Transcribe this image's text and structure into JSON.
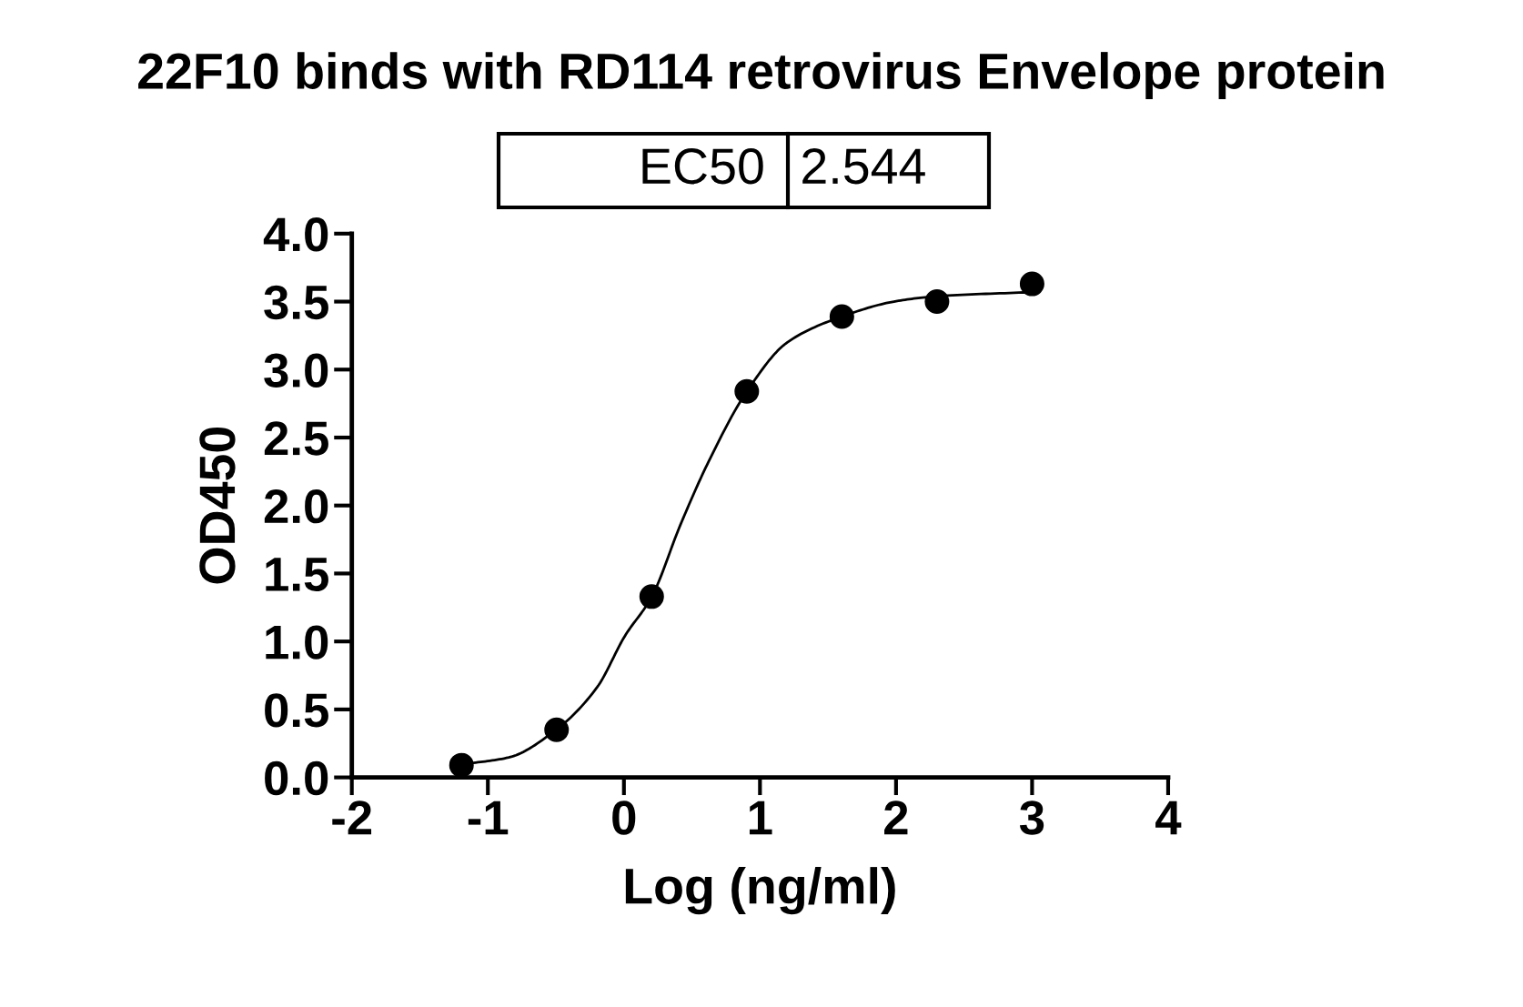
{
  "chart_data": {
    "type": "scatter",
    "title": "22F10 binds with RD114 retrovirus Envelope protein",
    "xlabel": "Log (ng/ml)",
    "ylabel": "OD450",
    "annotations": [
      "EC50",
      "2.544"
    ],
    "xlim": [
      -2,
      4
    ],
    "xticks": [
      -2,
      -1,
      0,
      1,
      2,
      3,
      4
    ],
    "ylim": [
      0,
      4
    ],
    "yticks": [
      {
        "value": 0,
        "label": "0.0"
      },
      {
        "value": 0.5,
        "label": "0.5"
      },
      {
        "value": 1,
        "label": "1.0"
      },
      {
        "value": 1.5,
        "label": "1.5"
      },
      {
        "value": 2,
        "label": "2.0"
      },
      {
        "value": 2.5,
        "label": "2.5"
      },
      {
        "value": 3,
        "label": "3.0"
      },
      {
        "value": 3.5,
        "label": "3.5"
      },
      {
        "value": 4,
        "label": "4.0"
      }
    ],
    "grid": false,
    "legend": false,
    "marker": "circle",
    "series": [
      {
        "color": "#000000",
        "x": [
          -1.194,
          -0.495,
          0.204,
          0.903,
          1.602,
          2.301,
          3.0
        ],
        "values": [
          0.09,
          0.35,
          1.33,
          2.84,
          3.39,
          3.5,
          3.63
        ]
      },
      {
        "type": "line",
        "color": "#000000",
        "line_style": "solid",
        "marker": "none",
        "x": [
          -1.194,
          -0.846,
          -0.495,
          -0.198,
          0.007,
          0.205,
          0.416,
          0.621,
          0.904,
          1.201,
          1.603,
          1.985,
          2.31,
          3.008
        ],
        "values": [
          0.096,
          0.147,
          0.353,
          0.662,
          1.04,
          1.33,
          1.86,
          2.32,
          2.84,
          3.2,
          3.39,
          3.5,
          3.54,
          3.57
        ]
      }
    ]
  }
}
